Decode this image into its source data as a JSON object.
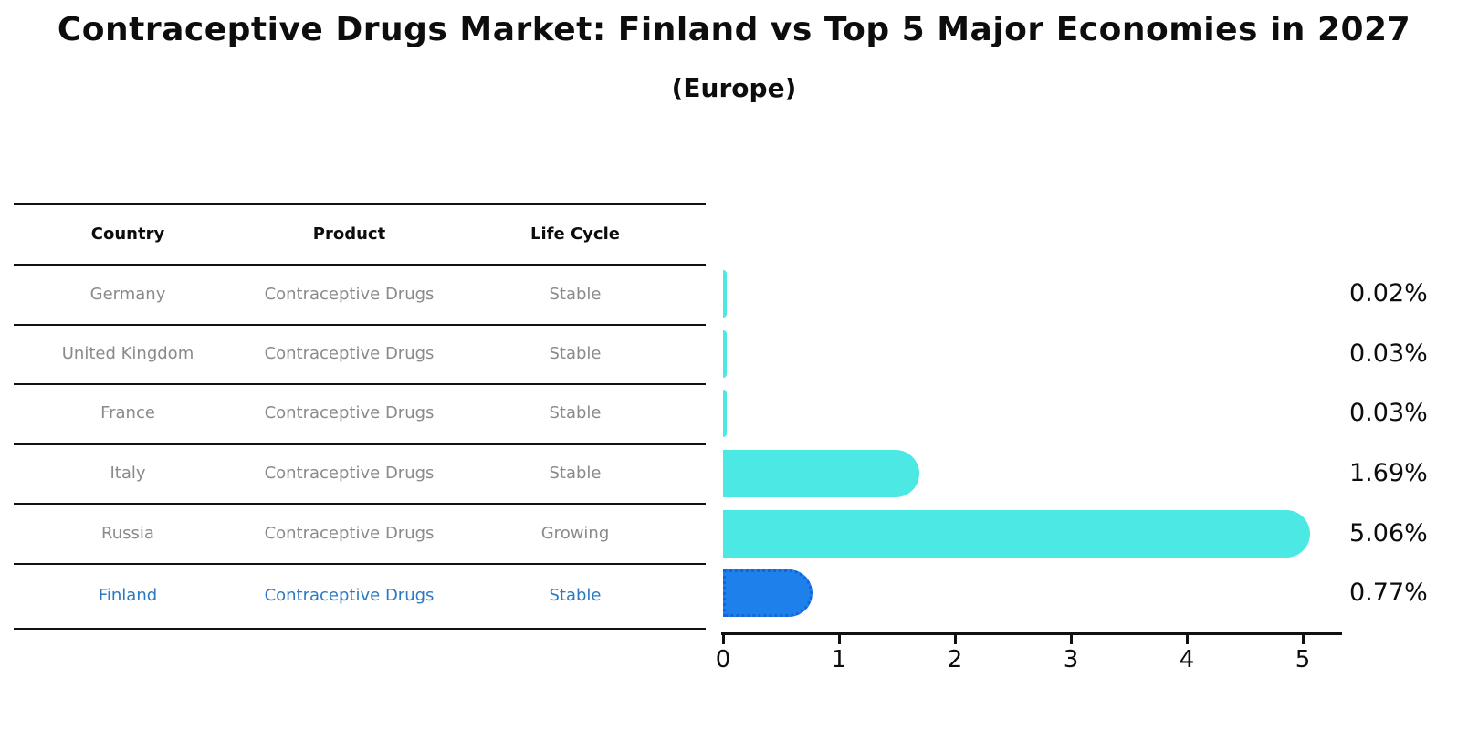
{
  "title": "Contraceptive Drugs Market: Finland vs Top 5 Major Economies in 2027",
  "subtitle": "(Europe)",
  "table": {
    "headers": [
      "Country",
      "Product",
      "Life Cycle"
    ],
    "rows": [
      {
        "country": "Germany",
        "product": "Contraceptive Drugs",
        "life_cycle": "Stable",
        "highlight": false
      },
      {
        "country": "United Kingdom",
        "product": "Contraceptive Drugs",
        "life_cycle": "Stable",
        "highlight": false
      },
      {
        "country": "France",
        "product": "Contraceptive Drugs",
        "life_cycle": "Stable",
        "highlight": false
      },
      {
        "country": "Italy",
        "product": "Contraceptive Drugs",
        "life_cycle": "Stable",
        "highlight": false
      },
      {
        "country": "Russia",
        "product": "Contraceptive Drugs",
        "life_cycle": "Growing",
        "highlight": false
      },
      {
        "country": "Finland",
        "product": "Contraceptive Drugs",
        "life_cycle": "Stable",
        "highlight": true
      }
    ]
  },
  "chart_data": {
    "type": "bar",
    "orientation": "horizontal",
    "title": "Contraceptive Drugs Market: Finland vs Top 5 Major Economies in 2027 (Europe)",
    "categories": [
      "Germany",
      "United Kingdom",
      "France",
      "Italy",
      "Russia",
      "Finland"
    ],
    "values": [
      0.02,
      0.03,
      0.03,
      1.69,
      5.06,
      0.77
    ],
    "value_labels": [
      "0.02%",
      "0.03%",
      "0.03%",
      "1.69%",
      "5.06%",
      "0.77%"
    ],
    "xticks": [
      0,
      1,
      2,
      3,
      4,
      5
    ],
    "xlim": [
      0,
      5.35
    ],
    "grid": false,
    "legend": false,
    "highlight_index": 5,
    "bar_color": "#4be8e4",
    "highlight_color": "#1e81eb",
    "highlight_border_color": "#1565d8",
    "highlight_text_color": "#2b79c2",
    "text_color_muted": "#8a8a8a",
    "axis_color": "#111111"
  }
}
